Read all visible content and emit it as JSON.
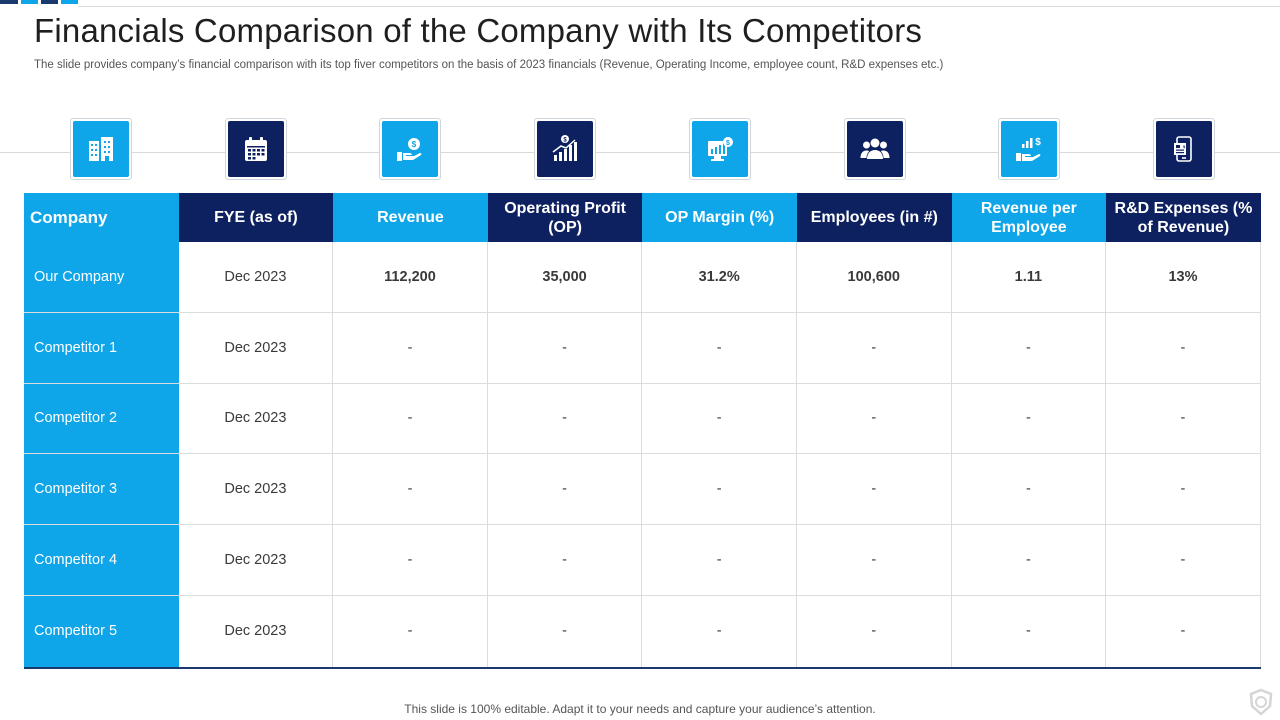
{
  "slide": {
    "title": "Financials Comparison of the Company with Its Competitors",
    "subtitle": "The slide provides company’s financial comparison with its top fiver  competitors on the basis of 2023 financials (Revenue, Operating Income, employee count, R&D expenses etc.)",
    "footer": "This slide is 100% editable. Adapt it to your needs and capture your audience’s attention."
  },
  "colors": {
    "light_blue": "#0ea5e9",
    "dark_navy": "#0d2060",
    "top_bar_navy": "#1a3a6e"
  },
  "icons": [
    {
      "name": "building-icon",
      "style": "light"
    },
    {
      "name": "calendar-icon",
      "style": "dark"
    },
    {
      "name": "hand-coin-icon",
      "style": "light"
    },
    {
      "name": "growth-chart-icon",
      "style": "dark"
    },
    {
      "name": "financial-report-icon",
      "style": "light"
    },
    {
      "name": "people-group-icon",
      "style": "dark"
    },
    {
      "name": "hand-growth-dollar-icon",
      "style": "light"
    },
    {
      "name": "phone-document-icon",
      "style": "dark"
    }
  ],
  "table": {
    "headers": [
      "Company",
      "FYE (as of)",
      "Revenue",
      "Operating Profit (OP)",
      "OP Margin (%)",
      "Employees (in #)",
      "Revenue per Employee",
      "R&D Expenses (% of Revenue)"
    ],
    "rows": [
      [
        "Our Company",
        "Dec 2023",
        "112,200",
        "35,000",
        "31.2%",
        "100,600",
        "1.11",
        "13%"
      ],
      [
        "Competitor 1",
        "Dec 2023",
        "-",
        "-",
        "-",
        "-",
        "-",
        "-"
      ],
      [
        "Competitor 2",
        "Dec 2023",
        "-",
        "-",
        "-",
        "-",
        "-",
        "-"
      ],
      [
        "Competitor 3",
        "Dec 2023",
        "-",
        "-",
        "-",
        "-",
        "-",
        "-"
      ],
      [
        "Competitor 4",
        "Dec 2023",
        "-",
        "-",
        "-",
        "-",
        "-",
        "-"
      ],
      [
        "Competitor 5",
        "Dec 2023",
        "-",
        "-",
        "-",
        "-",
        "-",
        "-"
      ]
    ]
  }
}
